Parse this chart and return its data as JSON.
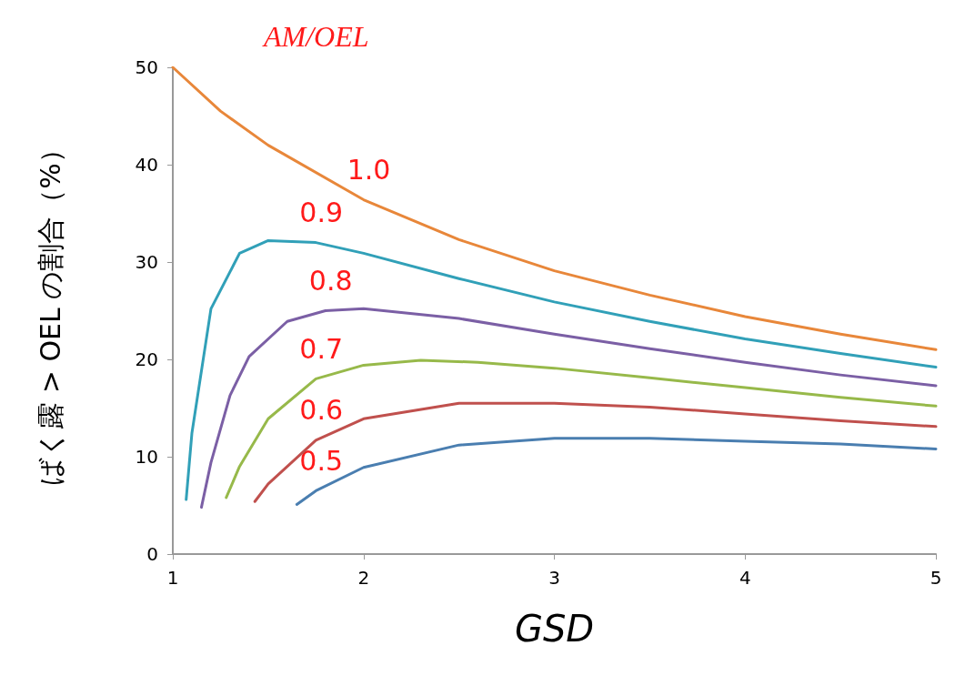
{
  "chart_data": {
    "type": "line",
    "xlabel": "GSD",
    "ylabel": "ばく露 > OEL の割合（%）",
    "legend_title": "AM/OEL",
    "xlim": [
      1,
      5
    ],
    "xticks": [
      1,
      2,
      3,
      4,
      5
    ],
    "ylim": [
      0,
      50
    ],
    "yticks": [
      0,
      10,
      20,
      30,
      40,
      50
    ],
    "grid": false,
    "marker": "none",
    "line_style": "solid",
    "series": [
      {
        "name": "1.0",
        "color": "#e8873a",
        "x": [
          1,
          1.25,
          1.5,
          2,
          2.5,
          3,
          3.5,
          4,
          4.5,
          5
        ],
        "values": [
          50,
          45.5,
          42,
          36.4,
          32.3,
          29.1,
          26.6,
          24.4,
          22.6,
          21
        ]
      },
      {
        "name": "0.9",
        "color": "#31a0b8",
        "x": [
          1.07,
          1.1,
          1.2,
          1.35,
          1.5,
          1.75,
          2,
          2.5,
          3,
          3.5,
          4,
          4.5,
          5
        ],
        "values": [
          5.6,
          12.4,
          25.2,
          30.9,
          32.2,
          32,
          30.9,
          28.3,
          25.9,
          23.9,
          22.1,
          20.6,
          19.2
        ]
      },
      {
        "name": "0.8",
        "color": "#7b5fa5",
        "x": [
          1.15,
          1.2,
          1.3,
          1.4,
          1.6,
          1.8,
          2,
          2.5,
          3,
          3.5,
          4,
          4.5,
          5
        ],
        "values": [
          4.8,
          9.4,
          16.3,
          20.3,
          23.9,
          25,
          25.2,
          24.2,
          22.6,
          21.1,
          19.7,
          18.4,
          17.3
        ]
      },
      {
        "name": "0.7",
        "color": "#97b94a",
        "x": [
          1.28,
          1.35,
          1.5,
          1.75,
          2,
          2.3,
          2.6,
          3,
          3.5,
          4,
          4.5,
          5
        ],
        "values": [
          5.8,
          9,
          13.9,
          18,
          19.4,
          19.9,
          19.7,
          19.1,
          18.1,
          17.1,
          16.1,
          15.2
        ]
      },
      {
        "name": "0.6",
        "color": "#c0504d",
        "x": [
          1.43,
          1.5,
          1.75,
          2,
          2.5,
          3,
          3.5,
          4,
          4.5,
          5
        ],
        "values": [
          5.4,
          7.2,
          11.7,
          13.9,
          15.5,
          15.5,
          15.1,
          14.4,
          13.7,
          13.1
        ]
      },
      {
        "name": "0.5",
        "color": "#4a7eb0",
        "x": [
          1.65,
          1.75,
          2,
          2.5,
          3,
          3.5,
          4,
          4.5,
          5
        ],
        "values": [
          5.1,
          6.5,
          8.9,
          11.2,
          11.9,
          11.9,
          11.6,
          11.3,
          10.8
        ]
      }
    ]
  }
}
